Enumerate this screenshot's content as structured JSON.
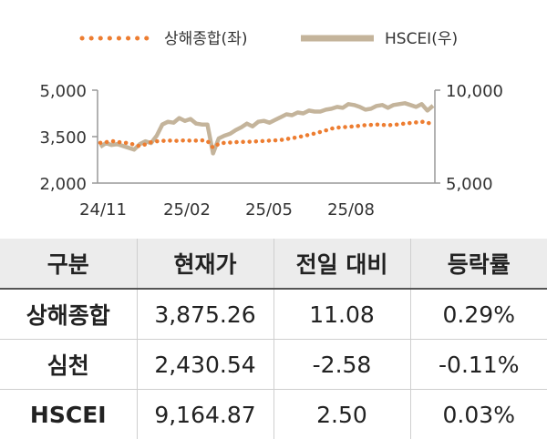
{
  "chart_data": {
    "type": "line",
    "legend": [
      {
        "name": "상해종합(좌)",
        "color": "#ED7D31",
        "style": "dotted"
      },
      {
        "name": "HSCEI(우)",
        "color": "#C4B49B",
        "style": "solid"
      }
    ],
    "legend_position": "top",
    "x_tick_labels": [
      "24/11",
      "25/02",
      "25/05",
      "25/08"
    ],
    "y_left": {
      "ticks": [
        "5,000",
        "3,500",
        "2,000"
      ],
      "range": [
        2000,
        5000
      ]
    },
    "y_right": {
      "ticks": [
        "10,000",
        "5,000"
      ],
      "range": [
        5000,
        10000
      ]
    },
    "grid": false,
    "series": [
      {
        "name": "상해종합(좌)",
        "axis": "left",
        "values": [
          3300,
          3320,
          3360,
          3330,
          3310,
          3290,
          3240,
          3190,
          3250,
          3320,
          3350,
          3360,
          3380,
          3360,
          3370,
          3380,
          3370,
          3370,
          3380,
          3360,
          3140,
          3270,
          3300,
          3310,
          3320,
          3330,
          3330,
          3340,
          3350,
          3360,
          3370,
          3380,
          3390,
          3420,
          3450,
          3480,
          3520,
          3560,
          3600,
          3650,
          3700,
          3760,
          3790,
          3800,
          3820,
          3830,
          3850,
          3870,
          3880,
          3890,
          3880,
          3870,
          3880,
          3900,
          3920,
          3940,
          3960,
          3980,
          3960,
          3875
        ]
      },
      {
        "name": "HSCEI(우)",
        "axis": "right",
        "values": [
          6950,
          7150,
          7050,
          7100,
          7000,
          6900,
          6800,
          7100,
          7250,
          7150,
          7550,
          8150,
          8300,
          8250,
          8500,
          8350,
          8450,
          8200,
          8150,
          8150,
          6600,
          7400,
          7550,
          7650,
          7850,
          8000,
          8200,
          8050,
          8300,
          8350,
          8250,
          8400,
          8550,
          8700,
          8650,
          8800,
          8750,
          8900,
          8850,
          8850,
          8950,
          9000,
          9100,
          9050,
          9250,
          9200,
          9100,
          8950,
          9000,
          9150,
          9200,
          9050,
          9200,
          9250,
          9300,
          9200,
          9100,
          9250,
          8900,
          9165
        ]
      }
    ]
  },
  "table": {
    "headers": [
      "구분",
      "현재가",
      "전일 대비",
      "등락률"
    ],
    "rows": [
      [
        "상해종합",
        "3,875.26",
        "11.08",
        "0.29%"
      ],
      [
        "심천",
        "2,430.54",
        "-2.58",
        "-0.11%"
      ],
      [
        "HSCEI",
        "9,164.87",
        "2.50",
        "0.03%"
      ]
    ]
  }
}
